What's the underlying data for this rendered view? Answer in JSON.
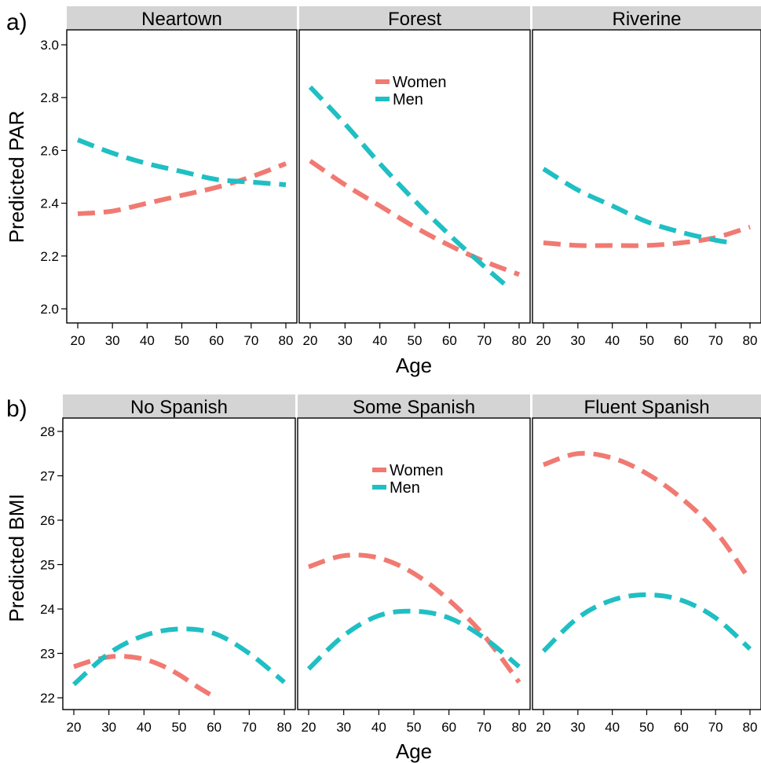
{
  "figure": {
    "colors": {
      "women": "#F07A72",
      "men": "#1FBFC3",
      "strip_bg": "#D4D4D4",
      "axis": "#000000"
    }
  },
  "chart_data": [
    {
      "type": "line",
      "panel_label": "a)",
      "ylabel": "Predicted PAR",
      "xlabel": "Age",
      "xlim": [
        17,
        81
      ],
      "ylim": [
        1.95,
        3.05
      ],
      "xticks": [
        "20",
        "30",
        "40",
        "50",
        "60",
        "70",
        "80"
      ],
      "yticks": [
        "2.0",
        "2.2",
        "2.4",
        "2.6",
        "2.8",
        "3.0"
      ],
      "grid": false,
      "legend": {
        "panel": "Forest",
        "position": "top-center",
        "entries": [
          "Women",
          "Men"
        ]
      },
      "facets": [
        {
          "title": "Neartown",
          "series": [
            {
              "name": "Women",
              "x": [
                20,
                30,
                40,
                50,
                60,
                70,
                80
              ],
              "values": [
                2.36,
                2.37,
                2.4,
                2.43,
                2.46,
                2.5,
                2.55
              ]
            },
            {
              "name": "Men",
              "x": [
                20,
                30,
                40,
                50,
                60,
                70,
                80
              ],
              "values": [
                2.64,
                2.59,
                2.55,
                2.52,
                2.49,
                2.48,
                2.47
              ]
            }
          ]
        },
        {
          "title": "Forest",
          "series": [
            {
              "name": "Women",
              "x": [
                20,
                30,
                40,
                50,
                60,
                70,
                80
              ],
              "values": [
                2.56,
                2.47,
                2.39,
                2.31,
                2.24,
                2.18,
                2.13
              ]
            },
            {
              "name": "Men",
              "x": [
                20,
                30,
                40,
                50,
                60,
                70,
                77
              ],
              "values": [
                2.84,
                2.7,
                2.55,
                2.41,
                2.28,
                2.16,
                2.08
              ]
            }
          ]
        },
        {
          "title": "Riverine",
          "series": [
            {
              "name": "Women",
              "x": [
                20,
                30,
                40,
                50,
                60,
                70,
                80
              ],
              "values": [
                2.25,
                2.24,
                2.24,
                2.24,
                2.25,
                2.27,
                2.31
              ]
            },
            {
              "name": "Men",
              "x": [
                20,
                30,
                40,
                50,
                60,
                70,
                75
              ],
              "values": [
                2.53,
                2.45,
                2.39,
                2.33,
                2.29,
                2.26,
                2.25
              ]
            }
          ]
        }
      ]
    },
    {
      "type": "line",
      "panel_label": "b)",
      "ylabel": "Predicted BMI",
      "xlabel": "Age",
      "xlim": [
        17,
        81
      ],
      "ylim": [
        21.7,
        28.3
      ],
      "xticks": [
        "20",
        "30",
        "40",
        "50",
        "60",
        "70",
        "80"
      ],
      "yticks": [
        "22",
        "23",
        "24",
        "25",
        "26",
        "27",
        "28"
      ],
      "grid": false,
      "legend": {
        "panel": "Some Spanish",
        "position": "top-center",
        "entries": [
          "Women",
          "Men"
        ]
      },
      "facets": [
        {
          "title": "No Spanish",
          "series": [
            {
              "name": "Women",
              "x": [
                20,
                25,
                30,
                35,
                40,
                45,
                50,
                55,
                60
              ],
              "values": [
                22.7,
                22.83,
                22.92,
                22.93,
                22.87,
                22.73,
                22.52,
                22.26,
                22.02
              ]
            },
            {
              "name": "Men",
              "x": [
                20,
                30,
                40,
                50,
                60,
                70,
                80
              ],
              "values": [
                22.3,
                23.0,
                23.4,
                23.55,
                23.45,
                23.0,
                22.35
              ]
            }
          ]
        },
        {
          "title": "Some Spanish",
          "series": [
            {
              "name": "Women",
              "x": [
                20,
                30,
                40,
                50,
                60,
                70,
                80
              ],
              "values": [
                24.95,
                25.2,
                25.15,
                24.8,
                24.2,
                23.4,
                22.35
              ]
            },
            {
              "name": "Men",
              "x": [
                20,
                30,
                40,
                50,
                60,
                70,
                80
              ],
              "values": [
                22.65,
                23.4,
                23.85,
                23.95,
                23.8,
                23.35,
                22.7
              ]
            }
          ]
        },
        {
          "title": "Fluent Spanish",
          "series": [
            {
              "name": "Women",
              "x": [
                20,
                30,
                40,
                50,
                60,
                70,
                80
              ],
              "values": [
                27.25,
                27.5,
                27.4,
                27.05,
                26.5,
                25.75,
                24.65
              ]
            },
            {
              "name": "Men",
              "x": [
                20,
                30,
                40,
                50,
                60,
                70,
                80
              ],
              "values": [
                23.05,
                23.8,
                24.2,
                24.32,
                24.2,
                23.8,
                23.1
              ]
            }
          ]
        }
      ]
    }
  ]
}
